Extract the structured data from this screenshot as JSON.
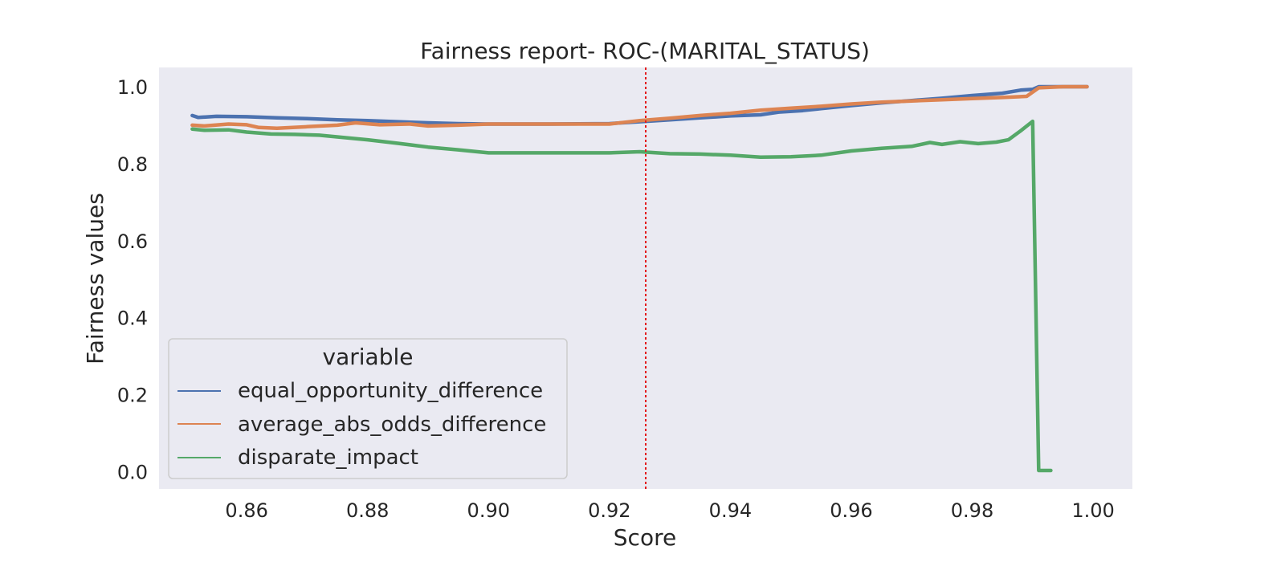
{
  "chart_data": {
    "type": "line",
    "title": "Fairness report- ROC-(MARITAL_STATUS)",
    "xlabel": "Score",
    "ylabel": "Fairness values",
    "xlim": [
      0.8455,
      1.0065
    ],
    "ylim": [
      -0.045,
      1.05
    ],
    "x_ticks": [
      "0.86",
      "0.88",
      "0.90",
      "0.92",
      "0.94",
      "0.96",
      "0.98",
      "1.00"
    ],
    "x_tick_values": [
      0.86,
      0.88,
      0.9,
      0.92,
      0.94,
      0.96,
      0.98,
      1.0
    ],
    "y_ticks": [
      "0.0",
      "0.2",
      "0.4",
      "0.6",
      "0.8",
      "1.0"
    ],
    "y_tick_values": [
      0.0,
      0.2,
      0.4,
      0.6,
      0.8,
      1.0
    ],
    "grid": false,
    "background": "#eaeaf2",
    "reference_line": {
      "x": 0.926,
      "color": "#e31a1c",
      "style": "dotted"
    },
    "legend": {
      "title": "variable",
      "position": "lower-left"
    },
    "series": [
      {
        "name": "equal_opportunity_difference",
        "color": "#4c72b0",
        "points": [
          [
            0.851,
            0.925
          ],
          [
            0.852,
            0.92
          ],
          [
            0.855,
            0.923
          ],
          [
            0.86,
            0.922
          ],
          [
            0.865,
            0.919
          ],
          [
            0.87,
            0.917
          ],
          [
            0.875,
            0.914
          ],
          [
            0.88,
            0.912
          ],
          [
            0.885,
            0.909
          ],
          [
            0.89,
            0.906
          ],
          [
            0.895,
            0.904
          ],
          [
            0.9,
            0.903
          ],
          [
            0.91,
            0.903
          ],
          [
            0.92,
            0.904
          ],
          [
            0.925,
            0.909
          ],
          [
            0.93,
            0.914
          ],
          [
            0.935,
            0.919
          ],
          [
            0.94,
            0.924
          ],
          [
            0.945,
            0.927
          ],
          [
            0.948,
            0.934
          ],
          [
            0.952,
            0.938
          ],
          [
            0.955,
            0.943
          ],
          [
            0.96,
            0.951
          ],
          [
            0.965,
            0.958
          ],
          [
            0.97,
            0.964
          ],
          [
            0.975,
            0.97
          ],
          [
            0.98,
            0.977
          ],
          [
            0.985,
            0.983
          ],
          [
            0.988,
            0.991
          ],
          [
            0.99,
            0.993
          ],
          [
            0.991,
            1.0
          ],
          [
            0.995,
            1.0
          ],
          [
            0.999,
            1.0
          ]
        ]
      },
      {
        "name": "average_abs_odds_difference",
        "color": "#dd8452",
        "points": [
          [
            0.851,
            0.9
          ],
          [
            0.853,
            0.898
          ],
          [
            0.857,
            0.903
          ],
          [
            0.86,
            0.901
          ],
          [
            0.862,
            0.894
          ],
          [
            0.865,
            0.892
          ],
          [
            0.87,
            0.896
          ],
          [
            0.875,
            0.9
          ],
          [
            0.878,
            0.906
          ],
          [
            0.882,
            0.901
          ],
          [
            0.887,
            0.903
          ],
          [
            0.89,
            0.898
          ],
          [
            0.895,
            0.9
          ],
          [
            0.9,
            0.903
          ],
          [
            0.91,
            0.903
          ],
          [
            0.92,
            0.903
          ],
          [
            0.925,
            0.912
          ],
          [
            0.93,
            0.918
          ],
          [
            0.935,
            0.925
          ],
          [
            0.94,
            0.931
          ],
          [
            0.945,
            0.939
          ],
          [
            0.95,
            0.944
          ],
          [
            0.955,
            0.949
          ],
          [
            0.96,
            0.955
          ],
          [
            0.965,
            0.96
          ],
          [
            0.97,
            0.963
          ],
          [
            0.975,
            0.966
          ],
          [
            0.98,
            0.969
          ],
          [
            0.985,
            0.972
          ],
          [
            0.989,
            0.975
          ],
          [
            0.991,
            0.997
          ],
          [
            0.995,
            1.0
          ],
          [
            0.999,
            1.0
          ]
        ]
      },
      {
        "name": "disparate_impact",
        "color": "#55a868",
        "points": [
          [
            0.851,
            0.89
          ],
          [
            0.853,
            0.887
          ],
          [
            0.857,
            0.888
          ],
          [
            0.86,
            0.882
          ],
          [
            0.864,
            0.877
          ],
          [
            0.868,
            0.876
          ],
          [
            0.872,
            0.874
          ],
          [
            0.876,
            0.868
          ],
          [
            0.88,
            0.862
          ],
          [
            0.885,
            0.853
          ],
          [
            0.89,
            0.843
          ],
          [
            0.895,
            0.836
          ],
          [
            0.9,
            0.828
          ],
          [
            0.91,
            0.828
          ],
          [
            0.92,
            0.828
          ],
          [
            0.925,
            0.831
          ],
          [
            0.93,
            0.826
          ],
          [
            0.935,
            0.825
          ],
          [
            0.94,
            0.822
          ],
          [
            0.945,
            0.817
          ],
          [
            0.95,
            0.818
          ],
          [
            0.955,
            0.822
          ],
          [
            0.96,
            0.833
          ],
          [
            0.965,
            0.84
          ],
          [
            0.97,
            0.845
          ],
          [
            0.973,
            0.855
          ],
          [
            0.975,
            0.85
          ],
          [
            0.978,
            0.857
          ],
          [
            0.981,
            0.852
          ],
          [
            0.984,
            0.856
          ],
          [
            0.986,
            0.862
          ],
          [
            0.988,
            0.885
          ],
          [
            0.99,
            0.91
          ],
          [
            0.991,
            0.003
          ],
          [
            0.993,
            0.003
          ]
        ]
      }
    ]
  }
}
